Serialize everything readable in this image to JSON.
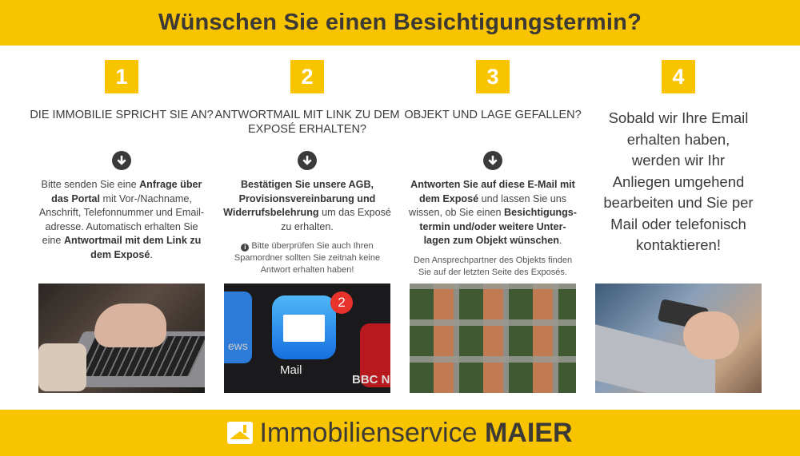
{
  "title": "Wünschen Sie einen Besichtigungstermin?",
  "colors": {
    "accent": "#f8c400",
    "text": "#3b3b3b"
  },
  "steps": [
    {
      "number": "1",
      "heading": "Die Immobilie spricht Sie an?",
      "icon": "arrow-down-circle-icon",
      "body": [
        {
          "t": "Bitte senden Sie eine "
        },
        {
          "t": "Anfrage über das Portal",
          "b": true
        },
        {
          "t": " mit Vor-/Nachname, Anschrift, Telefonnummer und Email-adresse. Automatisch erhalten Sie eine "
        },
        {
          "t": "Antwortmail mit dem Link zu dem Exposé",
          "b": true
        },
        {
          "t": "."
        }
      ],
      "image": "laptop-typing-photo"
    },
    {
      "number": "2",
      "heading": "Antwortmail mit Link zu dem Exposé erhalten?",
      "icon": "arrow-down-circle-icon",
      "body": [
        {
          "t": "Bestätigen Sie unsere AGB, Provisionsvereinbarung und Widerrufsbelehrung",
          "b": true
        },
        {
          "t": " um das Exposé zu erhalten."
        }
      ],
      "note": "Bitte überprüfen Sie auch Ihren Spamordner sollten Sie zeitnah keine Antwort erhalten haben!",
      "note_icon": "info-icon",
      "image": "mail-app-photo",
      "image_labels": {
        "mail": "Mail",
        "badge": "2",
        "bbc": "BBC N",
        "news": "ews"
      }
    },
    {
      "number": "3",
      "heading": "Objekt und Lage gefallen?",
      "icon": "arrow-down-circle-icon",
      "body": [
        {
          "t": "Antworten Sie auf diese E-Mail mit dem Exposé",
          "b": true
        },
        {
          "t": " und lassen Sie uns wissen, ob Sie einen "
        },
        {
          "t": "Besichtigungs-termin und/oder weitere Unter-lagen zum Objekt wünschen",
          "b": true
        },
        {
          "t": "."
        }
      ],
      "note": "Den Ansprechpartner des Objekts finden Sie auf der letzten Seite des Exposés.",
      "image": "aerial-houses-photo"
    },
    {
      "number": "4",
      "text": "Sobald wir Ihre Email erhalten haben, werden wir Ihr Anliegen umgehend bearbeiten und Sie per Mail oder telefonisch kontaktieren!",
      "image": "phone-laptop-photo"
    }
  ],
  "footer": {
    "brand_light": "Immobilienservice",
    "brand_bold": "MAIER",
    "logo_icon": "house-logo-icon"
  }
}
